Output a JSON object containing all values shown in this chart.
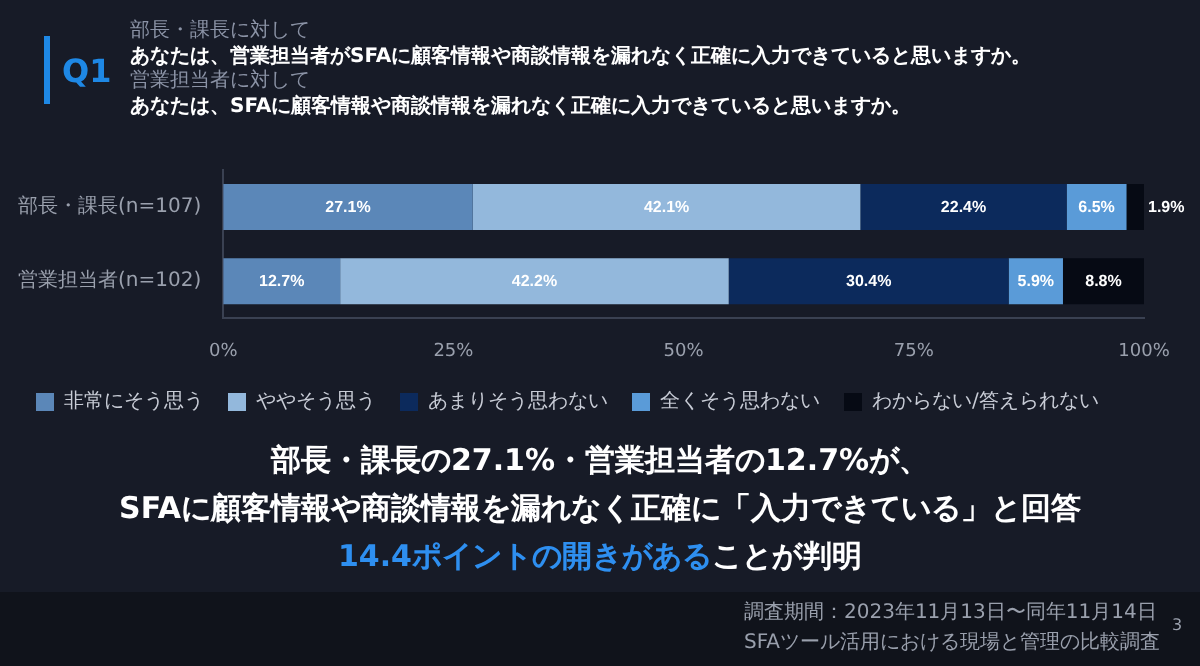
{
  "chart_data": {
    "type": "bar",
    "orientation": "horizontal",
    "stacked": true,
    "categories": [
      "部長・課長(n=107)",
      "営業担当者(n=102)"
    ],
    "series": [
      {
        "name": "非常にそう思う",
        "color": "#5b87b8",
        "values": [
          27.1,
          12.7
        ],
        "value_labels": [
          "27.1%",
          "12.7%"
        ]
      },
      {
        "name": "ややそう思う",
        "color": "#93b8dc",
        "values": [
          42.1,
          42.2
        ],
        "value_labels": [
          "42.1%",
          "42.2%"
        ]
      },
      {
        "name": "あまりそう思わない",
        "color": "#0c2a5c",
        "values": [
          22.4,
          30.4
        ],
        "value_labels": [
          "22.4%",
          "30.4%"
        ]
      },
      {
        "name": "全くそう思わない",
        "color": "#5a9bd8",
        "values": [
          6.5,
          5.9
        ],
        "value_labels": [
          "6.5%",
          "5.9%"
        ]
      },
      {
        "name": "わからない/答えられない",
        "color": "#060a14",
        "values": [
          1.9,
          8.8
        ],
        "value_labels": [
          "1.9%",
          "8.8%"
        ]
      }
    ],
    "xlim": [
      0,
      100
    ],
    "xticks": [
      {
        "value": 0,
        "label": "0%"
      },
      {
        "value": 25,
        "label": "25%"
      },
      {
        "value": 50,
        "label": "50%"
      },
      {
        "value": 75,
        "label": "75%"
      },
      {
        "value": 100,
        "label": "100%"
      }
    ],
    "legend": "bottom",
    "grid": false,
    "annotations": [
      "Q1",
      "部長・課長に対して",
      "あなたは、営業担当者がSFAに顧客情報や商談情報を漏れなく正確に入力できていると思いますか。",
      "営業担当者に対して",
      "あなたは、SFAに顧客情報や商談情報を漏れなく正確に入力できていると思いますか。",
      "部長・課長の27.1%・営業担当者の12.7%が、",
      "SFAに顧客情報や商談情報を漏れなく正確に「入力できている」と回答",
      "14.4ポイントの開きがある",
      "ことが判明",
      "調査期間：2023年11月13日〜同年11月14日",
      "SFAツール活用における現場と管理の比較調査",
      "3"
    ]
  }
}
